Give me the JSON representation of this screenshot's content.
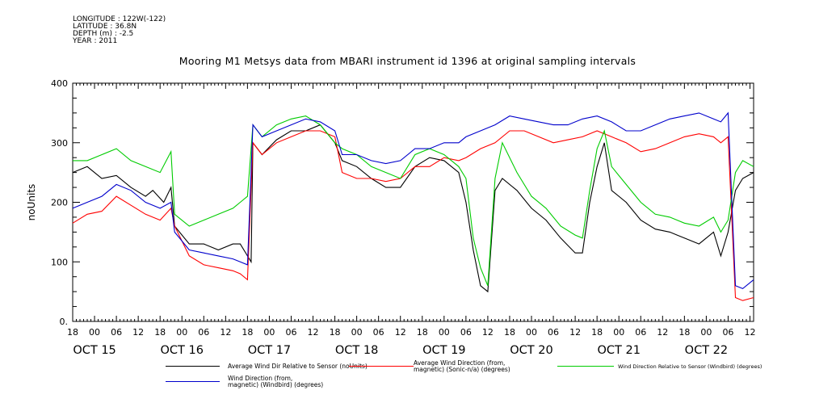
{
  "header": {
    "longitude": "LONGITUDE : 122W(-122)",
    "latitude": "LATITUDE : 36.8N",
    "depth": "DEPTH (m) : -2.5",
    "year": "YEAR : 2011"
  },
  "chart_data": {
    "type": "line",
    "title": "Mooring M1 Metsys data from MBARI instrument id 1396 at original sampling intervals",
    "ylabel": "noUnits",
    "xlabel": "",
    "ylim": [
      0,
      400
    ],
    "yticks": [
      "0.",
      "100",
      "200",
      "300",
      "400"
    ],
    "xlim_hours": [
      18,
      205
    ],
    "x_hour_labels": [
      "18",
      "00",
      "06",
      "12",
      "18",
      "00",
      "06",
      "12",
      "18",
      "00",
      "06",
      "12",
      "18",
      "00",
      "06",
      "12",
      "18",
      "00",
      "06",
      "12",
      "18",
      "00",
      "06",
      "12",
      "18",
      "00",
      "06",
      "12",
      "18",
      "00",
      "06",
      "12"
    ],
    "x_day_labels": [
      "OCT 15",
      "OCT 16",
      "OCT 17",
      "OCT 18",
      "OCT 19",
      "OCT 20",
      "OCT 21",
      "OCT 22"
    ],
    "series": [
      {
        "name": "Average Wind Dir Relative to Sensor (noUnits)",
        "color": "#000000",
        "points": [
          [
            18,
            250
          ],
          [
            22,
            260
          ],
          [
            26,
            240
          ],
          [
            30,
            245
          ],
          [
            34,
            225
          ],
          [
            38,
            210
          ],
          [
            40,
            220
          ],
          [
            43,
            200
          ],
          [
            45,
            225
          ],
          [
            46,
            160
          ],
          [
            50,
            130
          ],
          [
            54,
            130
          ],
          [
            58,
            120
          ],
          [
            62,
            130
          ],
          [
            64,
            130
          ],
          [
            66,
            110
          ],
          [
            67,
            100
          ],
          [
            67.5,
            300
          ],
          [
            70,
            280
          ],
          [
            74,
            305
          ],
          [
            78,
            320
          ],
          [
            82,
            320
          ],
          [
            86,
            330
          ],
          [
            90,
            300
          ],
          [
            92,
            270
          ],
          [
            96,
            260
          ],
          [
            100,
            240
          ],
          [
            104,
            225
          ],
          [
            108,
            225
          ],
          [
            112,
            260
          ],
          [
            116,
            275
          ],
          [
            120,
            270
          ],
          [
            124,
            250
          ],
          [
            126,
            200
          ],
          [
            128,
            120
          ],
          [
            130,
            60
          ],
          [
            132,
            50
          ],
          [
            134,
            220
          ],
          [
            136,
            240
          ],
          [
            140,
            220
          ],
          [
            144,
            190
          ],
          [
            148,
            170
          ],
          [
            152,
            140
          ],
          [
            156,
            115
          ],
          [
            158,
            115
          ],
          [
            160,
            200
          ],
          [
            162,
            260
          ],
          [
            164,
            300
          ],
          [
            166,
            220
          ],
          [
            170,
            200
          ],
          [
            174,
            170
          ],
          [
            178,
            155
          ],
          [
            182,
            150
          ],
          [
            184,
            145
          ],
          [
            186,
            140
          ],
          [
            190,
            130
          ],
          [
            194,
            150
          ],
          [
            196,
            110
          ],
          [
            198,
            150
          ],
          [
            200,
            220
          ],
          [
            202,
            240
          ],
          [
            205,
            250
          ]
        ]
      },
      {
        "name": "Average Wind Direction (from, magnetic) (Sonic-n/a) (degrees)",
        "color": "#ff0000",
        "points": [
          [
            18,
            165
          ],
          [
            22,
            180
          ],
          [
            26,
            185
          ],
          [
            30,
            210
          ],
          [
            34,
            195
          ],
          [
            38,
            180
          ],
          [
            42,
            170
          ],
          [
            45,
            190
          ],
          [
            46,
            160
          ],
          [
            50,
            110
          ],
          [
            54,
            95
          ],
          [
            58,
            90
          ],
          [
            62,
            85
          ],
          [
            64,
            80
          ],
          [
            66,
            70
          ],
          [
            67.5,
            300
          ],
          [
            70,
            280
          ],
          [
            74,
            300
          ],
          [
            78,
            310
          ],
          [
            82,
            320
          ],
          [
            86,
            320
          ],
          [
            90,
            310
          ],
          [
            92,
            250
          ],
          [
            96,
            240
          ],
          [
            100,
            240
          ],
          [
            104,
            235
          ],
          [
            108,
            240
          ],
          [
            112,
            260
          ],
          [
            116,
            260
          ],
          [
            120,
            275
          ],
          [
            124,
            270
          ],
          [
            126,
            275
          ],
          [
            130,
            290
          ],
          [
            134,
            300
          ],
          [
            138,
            320
          ],
          [
            142,
            320
          ],
          [
            146,
            310
          ],
          [
            150,
            300
          ],
          [
            154,
            305
          ],
          [
            158,
            310
          ],
          [
            162,
            320
          ],
          [
            166,
            310
          ],
          [
            170,
            300
          ],
          [
            174,
            285
          ],
          [
            178,
            290
          ],
          [
            182,
            300
          ],
          [
            186,
            310
          ],
          [
            190,
            315
          ],
          [
            194,
            310
          ],
          [
            196,
            300
          ],
          [
            198,
            310
          ],
          [
            200,
            40
          ],
          [
            202,
            35
          ],
          [
            205,
            40
          ]
        ]
      },
      {
        "name": "Wind Direction Relative to Sensor (Windbird) (degrees)",
        "color": "#00cc00",
        "points": [
          [
            18,
            270
          ],
          [
            22,
            270
          ],
          [
            26,
            280
          ],
          [
            30,
            290
          ],
          [
            34,
            270
          ],
          [
            38,
            260
          ],
          [
            42,
            250
          ],
          [
            45,
            285
          ],
          [
            46,
            180
          ],
          [
            50,
            160
          ],
          [
            54,
            170
          ],
          [
            58,
            180
          ],
          [
            62,
            190
          ],
          [
            64,
            200
          ],
          [
            66,
            210
          ],
          [
            67.5,
            330
          ],
          [
            70,
            310
          ],
          [
            74,
            330
          ],
          [
            78,
            340
          ],
          [
            82,
            345
          ],
          [
            86,
            330
          ],
          [
            90,
            300
          ],
          [
            92,
            290
          ],
          [
            96,
            280
          ],
          [
            100,
            260
          ],
          [
            104,
            250
          ],
          [
            108,
            240
          ],
          [
            112,
            280
          ],
          [
            116,
            290
          ],
          [
            120,
            280
          ],
          [
            124,
            260
          ],
          [
            126,
            240
          ],
          [
            128,
            140
          ],
          [
            130,
            90
          ],
          [
            132,
            60
          ],
          [
            134,
            240
          ],
          [
            136,
            300
          ],
          [
            140,
            250
          ],
          [
            144,
            210
          ],
          [
            148,
            190
          ],
          [
            152,
            160
          ],
          [
            156,
            145
          ],
          [
            158,
            140
          ],
          [
            160,
            220
          ],
          [
            162,
            290
          ],
          [
            164,
            320
          ],
          [
            166,
            260
          ],
          [
            170,
            230
          ],
          [
            174,
            200
          ],
          [
            178,
            180
          ],
          [
            182,
            175
          ],
          [
            184,
            170
          ],
          [
            186,
            165
          ],
          [
            190,
            160
          ],
          [
            194,
            175
          ],
          [
            196,
            150
          ],
          [
            198,
            170
          ],
          [
            200,
            250
          ],
          [
            202,
            270
          ],
          [
            205,
            260
          ]
        ]
      },
      {
        "name": "Wind Direction (from, magnetic) (Windbird) (degrees)",
        "color": "#0000cc",
        "points": [
          [
            18,
            190
          ],
          [
            22,
            200
          ],
          [
            26,
            210
          ],
          [
            30,
            230
          ],
          [
            34,
            220
          ],
          [
            38,
            200
          ],
          [
            42,
            190
          ],
          [
            45,
            200
          ],
          [
            46,
            150
          ],
          [
            50,
            120
          ],
          [
            54,
            115
          ],
          [
            58,
            110
          ],
          [
            62,
            105
          ],
          [
            64,
            100
          ],
          [
            66,
            95
          ],
          [
            67.5,
            330
          ],
          [
            70,
            310
          ],
          [
            74,
            320
          ],
          [
            78,
            330
          ],
          [
            82,
            340
          ],
          [
            86,
            335
          ],
          [
            90,
            320
          ],
          [
            92,
            280
          ],
          [
            96,
            280
          ],
          [
            100,
            270
          ],
          [
            104,
            265
          ],
          [
            108,
            270
          ],
          [
            112,
            290
          ],
          [
            116,
            290
          ],
          [
            120,
            300
          ],
          [
            124,
            300
          ],
          [
            126,
            310
          ],
          [
            130,
            320
          ],
          [
            134,
            330
          ],
          [
            138,
            345
          ],
          [
            142,
            340
          ],
          [
            146,
            335
          ],
          [
            150,
            330
          ],
          [
            154,
            330
          ],
          [
            158,
            340
          ],
          [
            162,
            345
          ],
          [
            166,
            335
          ],
          [
            170,
            320
          ],
          [
            174,
            320
          ],
          [
            178,
            330
          ],
          [
            182,
            340
          ],
          [
            186,
            345
          ],
          [
            190,
            350
          ],
          [
            194,
            340
          ],
          [
            196,
            335
          ],
          [
            198,
            350
          ],
          [
            200,
            60
          ],
          [
            202,
            55
          ],
          [
            205,
            70
          ]
        ]
      }
    ],
    "legend": [
      {
        "label": "Average Wind Dir Relative to Sensor (noUnits)",
        "color": "#000000"
      },
      {
        "label": "Average Wind Direction (from,\nmagnetic) (Sonic-n/a) (degrees)",
        "color": "#ff0000"
      },
      {
        "label": "Wind Direction Relative to Sensor (Windbird) (degrees)",
        "color": "#00cc00"
      },
      {
        "label": "Wind Direction (from,\nmagnetic) (Windbird) (degrees)",
        "color": "#0000cc"
      }
    ]
  }
}
